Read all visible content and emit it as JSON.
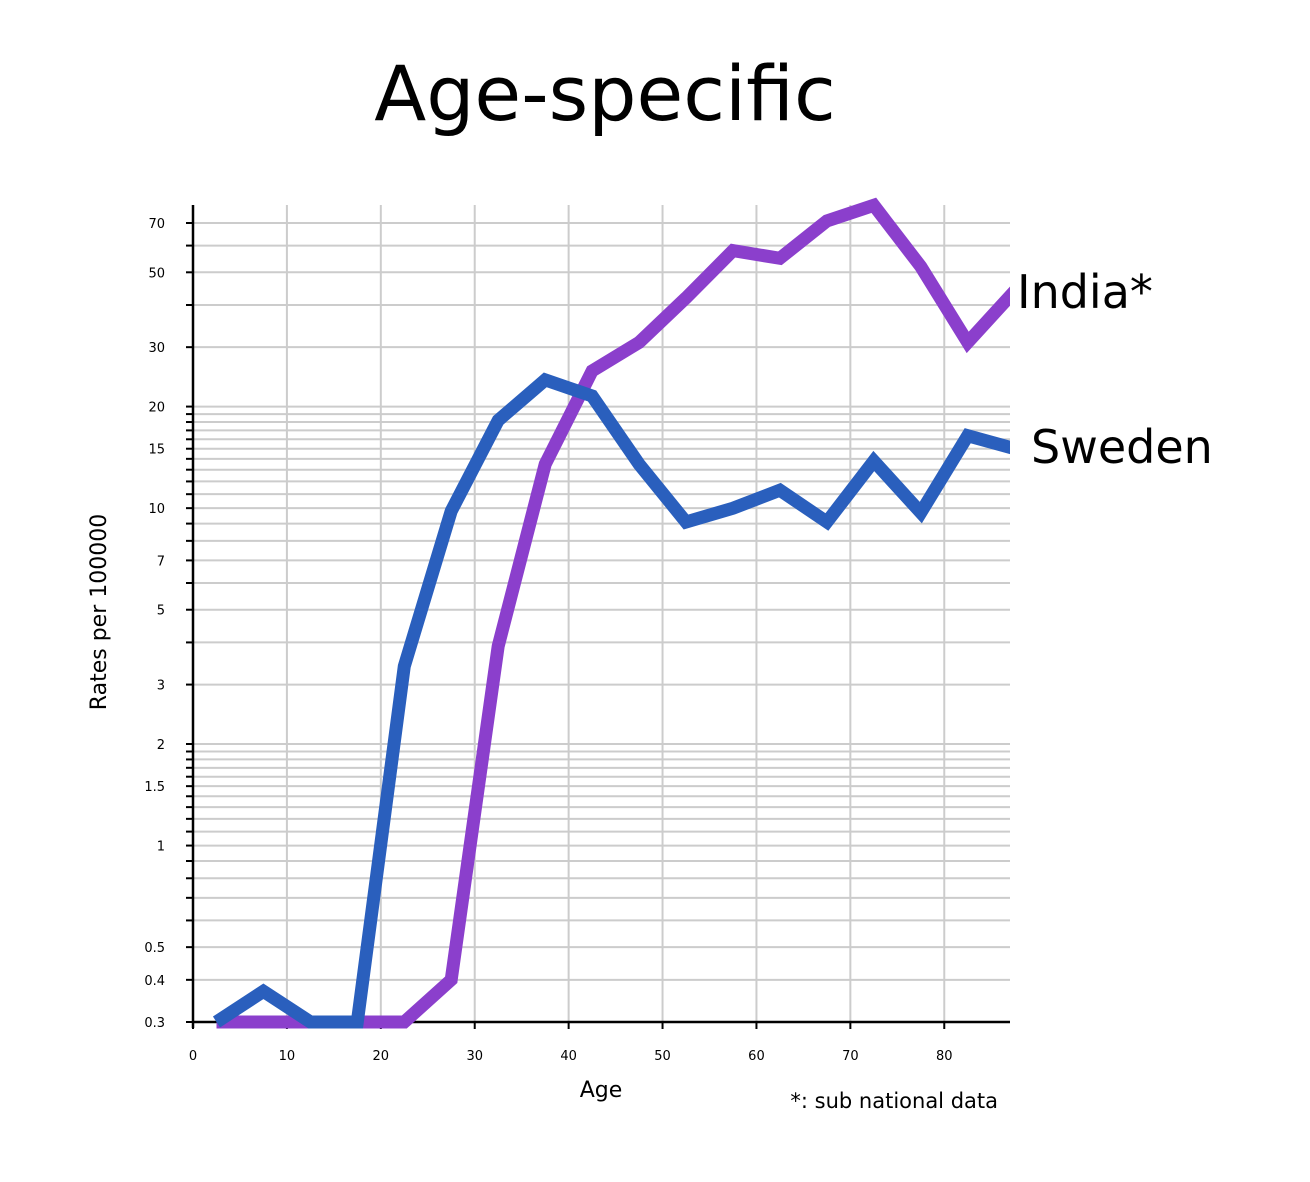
{
  "chart_data": {
    "type": "line",
    "title": "Age-specific",
    "xlabel": "Age",
    "ylabel": "Rates per 100000",
    "yscale": "log",
    "xlim": [
      0,
      87
    ],
    "ylim": [
      0.3,
      80
    ],
    "grid": true,
    "x_ticks": [
      "0",
      "10",
      "20",
      "30",
      "40",
      "50",
      "60",
      "70",
      "80"
    ],
    "y_ticks": [
      "0.3",
      "0.4",
      "0.5",
      "1",
      "1.5",
      "2",
      "3",
      "5",
      "7",
      "10",
      "15",
      "20",
      "30",
      "50",
      "70"
    ],
    "x": [
      2.5,
      7.5,
      12.5,
      17.5,
      22.5,
      27.5,
      32.5,
      37.5,
      42.5,
      47.5,
      52.5,
      57.5,
      62.5,
      67.5,
      72.5,
      77.5,
      82.5,
      87.5
    ],
    "series": [
      {
        "name": "India*",
        "color": "#8b3fcc",
        "values": [
          0.3,
          0.3,
          0.3,
          0.3,
          0.3,
          0.4,
          3.9,
          13.5,
          25.5,
          31,
          42,
          58,
          55,
          71,
          79,
          52,
          31,
          44
        ]
      },
      {
        "name": "Sweden",
        "color": "#2a5fbd",
        "values": [
          0.3,
          0.37,
          0.3,
          0.3,
          3.4,
          9.8,
          18.2,
          24,
          21.5,
          13.5,
          9.1,
          10,
          11.3,
          9.1,
          13.8,
          9.7,
          16.4,
          15
        ]
      }
    ],
    "footnote": "*: sub national data"
  }
}
